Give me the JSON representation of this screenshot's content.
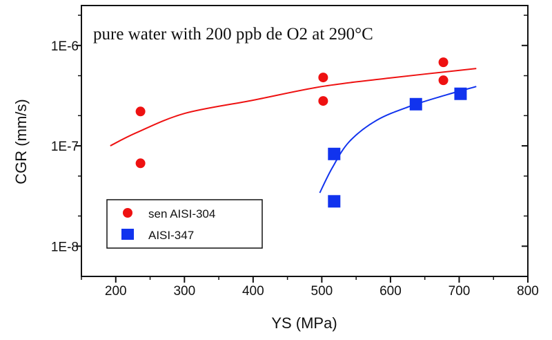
{
  "chart_data": {
    "type": "scatter",
    "annotation": "pure water with 200 ppb de O2 at 290°C",
    "xlabel": "YS (MPa)",
    "ylabel": "CGR (mm/s)",
    "xlim": [
      150,
      800
    ],
    "ylim": [
      5e-09,
      2.5e-06
    ],
    "y_scale": "log",
    "grid": false,
    "legend_position": "bottom-left",
    "x_ticks": [
      200,
      300,
      400,
      500,
      600,
      700,
      800
    ],
    "x_tick_labels": [
      "200",
      "300",
      "400",
      "500",
      "600",
      "700",
      "800"
    ],
    "y_ticks": [
      1e-08,
      1e-07,
      1e-06
    ],
    "y_tick_labels": [
      "1E-8",
      "1E-7",
      "1E-6"
    ],
    "series": [
      {
        "name": "sen AISI-304",
        "color": "#ee1111",
        "marker": "circle",
        "points": [
          {
            "x": 236,
            "y": 2.2e-07
          },
          {
            "x": 236,
            "y": 6.7e-08
          },
          {
            "x": 502,
            "y": 4.8e-07
          },
          {
            "x": 502,
            "y": 2.8e-07
          },
          {
            "x": 677,
            "y": 6.8e-07
          },
          {
            "x": 677,
            "y": 4.5e-07
          }
        ],
        "fit": [
          {
            "x": 192,
            "y": 1e-07
          },
          {
            "x": 230,
            "y": 1.35e-07
          },
          {
            "x": 300,
            "y": 2.1e-07
          },
          {
            "x": 400,
            "y": 2.85e-07
          },
          {
            "x": 500,
            "y": 3.9e-07
          },
          {
            "x": 600,
            "y": 4.75e-07
          },
          {
            "x": 725,
            "y": 5.9e-07
          }
        ]
      },
      {
        "name": "AISI-347",
        "color": "#1133ee",
        "marker": "square",
        "points": [
          {
            "x": 518,
            "y": 8.3e-08
          },
          {
            "x": 518,
            "y": 2.8e-08
          },
          {
            "x": 637,
            "y": 2.6e-07
          },
          {
            "x": 702,
            "y": 3.3e-07
          }
        ],
        "fit": [
          {
            "x": 497,
            "y": 3.4e-08
          },
          {
            "x": 515,
            "y": 6e-08
          },
          {
            "x": 540,
            "y": 1.1e-07
          },
          {
            "x": 580,
            "y": 1.8e-07
          },
          {
            "x": 630,
            "y": 2.5e-07
          },
          {
            "x": 680,
            "y": 3.2e-07
          },
          {
            "x": 725,
            "y": 3.9e-07
          }
        ]
      }
    ]
  }
}
